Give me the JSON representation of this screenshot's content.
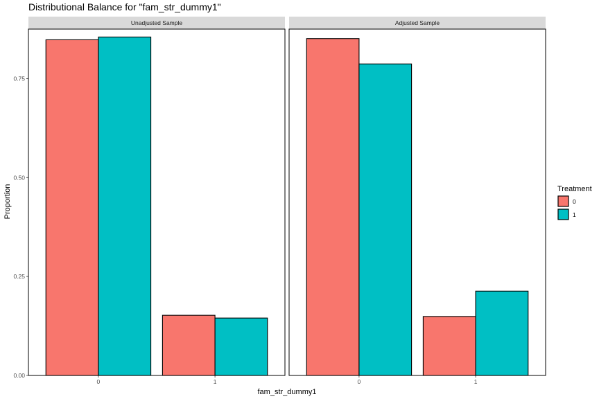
{
  "chart_data": {
    "type": "bar",
    "title": "Distributional Balance for \"fam_str_dummy1\"",
    "xlabel": "fam_str_dummy1",
    "ylabel": "Proportion",
    "ylim": [
      0,
      0.875
    ],
    "y_ticks": [
      0.0,
      0.25,
      0.5,
      0.75
    ],
    "y_tick_labels": [
      "0.00",
      "0.25",
      "0.50",
      "0.75"
    ],
    "categories": [
      "0",
      "1"
    ],
    "legend": {
      "title": "Treatment",
      "position": "right"
    },
    "colors": {
      "0": "#F8766D",
      "1": "#00BFC4"
    },
    "grid": false,
    "panels": [
      {
        "name": "Unadjusted Sample",
        "series": [
          {
            "name": "0",
            "values": [
              0.848,
              0.152
            ]
          },
          {
            "name": "1",
            "values": [
              0.855,
              0.145
            ]
          }
        ]
      },
      {
        "name": "Adjusted Sample",
        "series": [
          {
            "name": "0",
            "values": [
              0.851,
              0.149
            ]
          },
          {
            "name": "1",
            "values": [
              0.787,
              0.213
            ]
          }
        ]
      }
    ]
  }
}
